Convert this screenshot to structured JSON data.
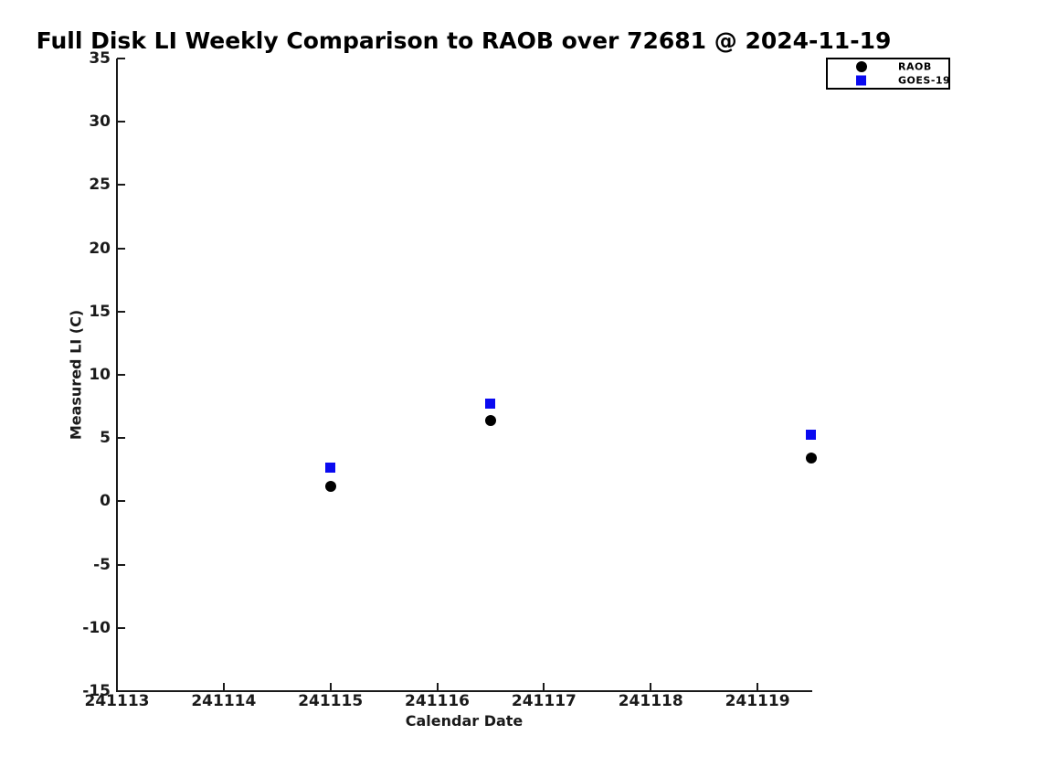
{
  "figure": {
    "background_color": "#ffffff",
    "text_color": "#000000"
  },
  "chart_data": {
    "type": "scatter",
    "title": "Full Disk LI Weekly Comparison to RAOB over 72681 @ 2024-11-19",
    "xlabel": "Calendar Date",
    "ylabel": "Measured LI (C)",
    "xlim": [
      241113,
      241119.5
    ],
    "ylim": [
      -15,
      35
    ],
    "xticks": [
      241113,
      241114,
      241115,
      241116,
      241117,
      241118,
      241119
    ],
    "yticks": [
      -15,
      -10,
      -5,
      0,
      5,
      10,
      15,
      20,
      25,
      30,
      35
    ],
    "grid": false,
    "legend_position": "top-right",
    "x": [
      241115,
      241116.5,
      241119.5
    ],
    "series": [
      {
        "name": "RAOB",
        "marker": "circle",
        "color": "#000000",
        "values": [
          1.2,
          6.4,
          3.4
        ]
      },
      {
        "name": "GOES-19",
        "marker": "square",
        "color": "#0a0af0",
        "values": [
          2.7,
          7.7,
          5.3
        ]
      }
    ]
  }
}
